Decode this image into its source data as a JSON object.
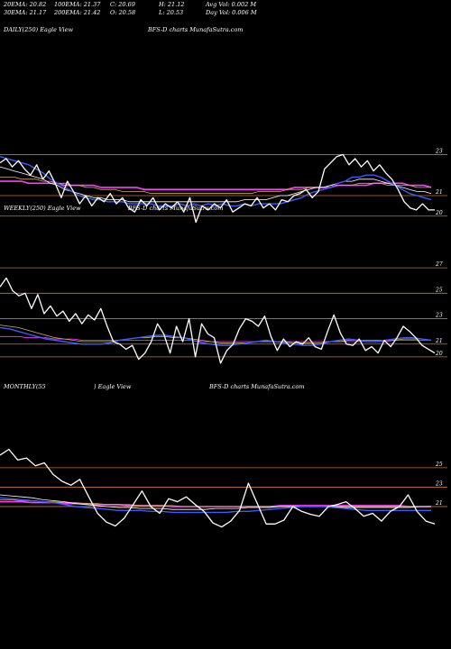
{
  "header": {
    "row1": [
      {
        "key": "r1c1",
        "text": "20EMA: 20.82"
      },
      {
        "key": "r1c2",
        "text": "100EMA: 21.37"
      },
      {
        "key": "r1c3",
        "text": "C: 20.69"
      },
      {
        "key": "r1c4",
        "text": "H: 21.12"
      },
      {
        "key": "r1c5",
        "text": "Avg Vol: 0.002  M"
      }
    ],
    "row2": [
      {
        "key": "r2c1",
        "text": "30EMA: 21.17"
      },
      {
        "key": "r2c2",
        "text": "200EMA: 21.42"
      },
      {
        "key": "r2c3",
        "text": "O: 20.58"
      },
      {
        "key": "r2c4",
        "text": "L: 20.53"
      },
      {
        "key": "r2c5",
        "text": "Day Vol: 0.006  M"
      }
    ]
  },
  "panels": {
    "daily": {
      "label": "DAILY(250) Eagle  View",
      "watermark": "BFS-D charts MunafaSutra.com"
    },
    "weekly": {
      "label": "WEEKLY(250) Eagle  View",
      "watermark": "BFS-D charts MunafaSutra.com"
    },
    "monthly": {
      "label": "MONTHLY(55",
      "label2": ") Eagle  View",
      "watermark": "BFS-D charts MunafaSutra.com"
    }
  },
  "colors": {
    "background": "#000000",
    "price": "#ffffff",
    "grid": "#c87533",
    "ema20": "#3a5cff",
    "ema30": "#ffffff",
    "ema100": "#d4b35a",
    "ema200": "#ff3cff"
  },
  "chart_data": [
    {
      "type": "line",
      "title": "DAILY(250) Eagle View",
      "y_ticks": [
        23,
        21,
        20
      ],
      "ylim": [
        19.2,
        24.6
      ],
      "series": [
        {
          "name": "",
          "color": "#ffffff",
          "values": [
            22.6,
            22.8,
            22.4,
            22.7,
            22.3,
            22.0,
            22.5,
            21.8,
            22.2,
            21.6,
            20.9,
            21.7,
            21.2,
            20.6,
            21.0,
            20.5,
            20.9,
            20.7,
            21.1,
            20.6,
            20.9,
            20.4,
            20.2,
            20.8,
            20.5,
            20.9,
            20.3,
            20.6,
            20.4,
            20.7,
            20.2,
            20.9,
            19.7,
            20.5,
            20.3,
            20.6,
            20.4,
            20.8,
            20.2,
            20.4,
            20.6,
            20.5,
            20.9,
            20.4,
            20.6,
            20.3,
            20.8,
            20.7,
            21.0,
            21.1,
            21.3,
            20.9,
            21.2,
            22.3,
            22.6,
            22.9,
            23.0,
            22.5,
            22.8,
            22.4,
            22.7,
            22.2,
            22.5,
            22.1,
            21.8,
            21.3,
            20.7,
            20.4,
            20.3,
            20.6,
            20.3,
            20.3
          ]
        },
        {
          "name": "",
          "color": "#3a5cff",
          "values": [
            22.9,
            22.8,
            22.7,
            22.6,
            22.5,
            22.3,
            22.1,
            21.8,
            21.6,
            21.4,
            21.2,
            21.0,
            20.9,
            20.8,
            20.8,
            20.7,
            20.7,
            20.7,
            20.6,
            20.6,
            20.6,
            20.6,
            20.5,
            20.5,
            20.5,
            20.6,
            20.5,
            20.6,
            20.5,
            20.6,
            20.5,
            20.6,
            20.5,
            20.5,
            20.6,
            20.5,
            20.6,
            20.6,
            20.6,
            20.6,
            20.7,
            20.8,
            20.9,
            21.1,
            21.2,
            21.3,
            21.4,
            21.6,
            21.7,
            21.9,
            21.9,
            22.0,
            22.0,
            21.9,
            21.7,
            21.5,
            21.3,
            21.1,
            21.0,
            20.9,
            20.8
          ]
        },
        {
          "name": "",
          "color": "#ffffff",
          "values": [
            22.4,
            22.3,
            22.2,
            22.1,
            22.0,
            21.9,
            21.8,
            21.6,
            21.5,
            21.3,
            21.2,
            21.1,
            21.0,
            20.9,
            20.9,
            20.8,
            20.8,
            20.8,
            20.7,
            20.7,
            20.7,
            20.7,
            20.7,
            20.7,
            20.7,
            20.7,
            20.7,
            20.7,
            20.7,
            20.7,
            20.7,
            20.7,
            20.7,
            20.7,
            20.8,
            20.8,
            20.8,
            20.8,
            20.9,
            21.0,
            21.0,
            21.1,
            21.2,
            21.3,
            21.4,
            21.4,
            21.5,
            21.6,
            21.7,
            21.7,
            21.8,
            21.8,
            21.8,
            21.7,
            21.6,
            21.5,
            21.4,
            21.3,
            21.2,
            21.2,
            21.1
          ]
        },
        {
          "name": "",
          "color": "#d4b35a",
          "values": [
            21.9,
            21.9,
            21.9,
            21.8,
            21.8,
            21.8,
            21.7,
            21.7,
            21.6,
            21.6,
            21.5,
            21.5,
            21.4,
            21.4,
            21.3,
            21.3,
            21.3,
            21.2,
            21.2,
            21.2,
            21.2,
            21.1,
            21.1,
            21.1,
            21.1,
            21.1,
            21.1,
            21.1,
            21.1,
            21.1,
            21.1,
            21.1,
            21.1,
            21.1,
            21.1,
            21.1,
            21.2,
            21.2,
            21.2,
            21.2,
            21.3,
            21.3,
            21.3,
            21.4,
            21.4,
            21.4,
            21.5,
            21.5,
            21.5,
            21.5,
            21.6,
            21.6,
            21.6,
            21.6,
            21.5,
            21.5,
            21.5,
            21.5,
            21.4,
            21.4,
            21.4
          ]
        },
        {
          "name": "",
          "color": "#ff3cff",
          "values": [
            21.7,
            21.7,
            21.7,
            21.7,
            21.6,
            21.6,
            21.6,
            21.6,
            21.6,
            21.5,
            21.5,
            21.5,
            21.5,
            21.5,
            21.4,
            21.4,
            21.4,
            21.4,
            21.4,
            21.4,
            21.3,
            21.3,
            21.3,
            21.3,
            21.3,
            21.3,
            21.3,
            21.3,
            21.3,
            21.3,
            21.3,
            21.3,
            21.3,
            21.3,
            21.3,
            21.3,
            21.3,
            21.3,
            21.3,
            21.3,
            21.3,
            21.4,
            21.4,
            21.4,
            21.4,
            21.4,
            21.4,
            21.5,
            21.5,
            21.5,
            21.5,
            21.5,
            21.6,
            21.6,
            21.6,
            21.6,
            21.6,
            21.5,
            21.5,
            21.5,
            21.4
          ]
        }
      ]
    },
    {
      "type": "line",
      "title": "WEEKLY(250) Eagle View",
      "y_ticks": [
        27,
        25,
        23,
        21,
        20
      ],
      "ylim": [
        19.0,
        28.0
      ],
      "series": [
        {
          "name": "",
          "color": "#ffffff",
          "values": [
            25.5,
            26.2,
            25.2,
            24.8,
            25.0,
            23.8,
            24.9,
            23.4,
            24.0,
            23.2,
            23.6,
            22.8,
            23.4,
            22.6,
            23.3,
            22.9,
            23.8,
            22.4,
            21.2,
            21.0,
            20.6,
            20.9,
            19.8,
            20.3,
            21.2,
            22.6,
            21.8,
            20.3,
            22.4,
            21.2,
            23.0,
            20.0,
            22.6,
            21.8,
            21.5,
            19.5,
            20.5,
            21.0,
            22.2,
            23.0,
            22.8,
            22.4,
            23.2,
            21.6,
            20.5,
            21.4,
            20.8,
            21.2,
            21.0,
            21.5,
            20.8,
            20.6,
            22.0,
            23.3,
            21.9,
            21.0,
            20.9,
            21.4,
            20.5,
            20.8,
            20.3,
            21.3,
            20.8,
            21.5,
            22.4,
            22.0,
            21.5,
            20.9,
            20.6,
            20.3
          ]
        },
        {
          "name": "",
          "color": "#3a5cff",
          "values": [
            22.3,
            22.2,
            22.0,
            21.8,
            21.6,
            21.4,
            21.3,
            21.2,
            21.1,
            21.0,
            21.0,
            21.0,
            21.1,
            21.3,
            21.4,
            21.5,
            21.6,
            21.7,
            21.7,
            21.6,
            21.5,
            21.3,
            21.1,
            21.0,
            20.9,
            20.9,
            21.0,
            21.1,
            21.2,
            21.3,
            21.2,
            21.1,
            21.0,
            20.9,
            20.9,
            21.0,
            21.2,
            21.3,
            21.4,
            21.3,
            21.2,
            21.2,
            21.3,
            21.4,
            21.5,
            21.5,
            21.4,
            21.3
          ]
        },
        {
          "name": "",
          "color": "#d4b35a",
          "values": [
            22.5,
            22.4,
            22.3,
            22.1,
            21.9,
            21.7,
            21.5,
            21.4,
            21.3,
            21.2,
            21.2,
            21.2,
            21.2,
            21.3,
            21.4,
            21.5,
            21.5,
            21.6,
            21.6,
            21.5,
            21.5,
            21.4,
            21.3,
            21.2,
            21.1,
            21.1,
            21.1,
            21.1,
            21.2,
            21.2,
            21.2,
            21.2,
            21.1,
            21.1,
            21.1,
            21.1,
            21.2,
            21.2,
            21.3,
            21.3,
            21.3,
            21.3,
            21.3,
            21.3,
            21.4,
            21.4,
            21.4,
            21.3
          ]
        },
        {
          "name": "",
          "color": "#ff3cff",
          "values": [
            21.6,
            21.6,
            21.6,
            21.5,
            21.5,
            21.5,
            21.4,
            21.4,
            21.4,
            21.3,
            21.3,
            21.3,
            21.3,
            21.3,
            21.3,
            21.3,
            21.3,
            21.3,
            21.3,
            21.3,
            21.3,
            21.3,
            21.2,
            21.2,
            21.2,
            21.2,
            21.2,
            21.2,
            21.2,
            21.2,
            21.2,
            21.2,
            21.2,
            21.2,
            21.2,
            21.2,
            21.2,
            21.2,
            21.2,
            21.2,
            21.2,
            21.2,
            21.2,
            21.3,
            21.3,
            21.3,
            21.3,
            21.3
          ]
        }
      ]
    },
    {
      "type": "line",
      "title": "MONTHLY(55) Eagle View",
      "y_ticks": [
        25,
        23,
        21
      ],
      "ylim": [
        17.0,
        27.5
      ],
      "series": [
        {
          "name": "",
          "color": "#ffffff",
          "values": [
            26.3,
            26.9,
            25.8,
            26.0,
            25.2,
            25.5,
            24.3,
            23.6,
            23.2,
            23.8,
            22.0,
            20.3,
            19.4,
            19.0,
            19.8,
            21.2,
            22.6,
            21.0,
            20.3,
            21.8,
            21.5,
            22.0,
            21.2,
            20.5,
            19.3,
            18.9,
            19.5,
            20.6,
            23.4,
            21.3,
            19.2,
            19.2,
            19.6,
            21.0,
            20.5,
            20.2,
            20.0,
            21.0,
            21.2,
            21.5,
            20.8,
            20.0,
            20.3,
            19.5,
            20.5,
            21.0,
            22.2,
            20.5,
            19.5,
            19.2
          ]
        },
        {
          "name": "",
          "color": "#3a5cff",
          "values": [
            21.9,
            21.8,
            21.7,
            21.6,
            21.5,
            21.4,
            21.2,
            21.0,
            20.9,
            20.8,
            20.7,
            20.6,
            20.6,
            20.6,
            20.5,
            20.5,
            20.4,
            20.4,
            20.4,
            20.4,
            20.4,
            20.4,
            20.5,
            20.5,
            20.6,
            20.7,
            20.8,
            20.9,
            21.0,
            21.0,
            21.0,
            20.9,
            20.8,
            20.7,
            20.6,
            20.6,
            20.6,
            20.6,
            20.6,
            20.6,
            20.6
          ]
        },
        {
          "name": "",
          "color": "#ffffff",
          "values": [
            22.2,
            22.1,
            22.0,
            21.9,
            21.7,
            21.6,
            21.5,
            21.3,
            21.2,
            21.1,
            21.0,
            20.9,
            20.9,
            20.8,
            20.8,
            20.8,
            20.7,
            20.7,
            20.7,
            20.7,
            20.8,
            20.8,
            20.8,
            20.9,
            20.9,
            20.9,
            21.0,
            21.0,
            21.0,
            21.0,
            21.0,
            21.0,
            20.9,
            20.9,
            20.9,
            20.9,
            20.9,
            20.9,
            20.9,
            21.0,
            21.0
          ]
        },
        {
          "name": "",
          "color": "#d4b35a",
          "values": [
            21.7,
            21.7,
            21.6,
            21.6,
            21.5,
            21.5,
            21.4,
            21.4,
            21.3,
            21.3,
            21.2,
            21.2,
            21.2,
            21.1,
            21.1,
            21.1,
            21.1,
            21.0,
            21.0,
            21.0,
            21.0,
            21.0,
            21.0,
            21.0,
            21.0,
            21.0,
            21.0,
            21.0,
            21.0,
            21.0,
            21.0,
            21.0,
            21.0,
            21.0,
            21.0,
            21.0,
            21.0,
            21.0,
            21.0,
            21.0,
            21.0
          ]
        },
        {
          "name": "",
          "color": "#ff3cff",
          "values": [
            21.5,
            21.5,
            21.5,
            21.4,
            21.4,
            21.4,
            21.3,
            21.3,
            21.3,
            21.2,
            21.2,
            21.2,
            21.1,
            21.1,
            21.1,
            21.1,
            21.0,
            21.0,
            21.0,
            21.0,
            21.0,
            21.0,
            21.0,
            21.0,
            21.0,
            21.0,
            21.1,
            21.1,
            21.1,
            21.1,
            21.1,
            21.1,
            21.1,
            21.1,
            21.1,
            21.1,
            21.1,
            21.1,
            21.0,
            21.0,
            21.0
          ]
        }
      ]
    }
  ]
}
